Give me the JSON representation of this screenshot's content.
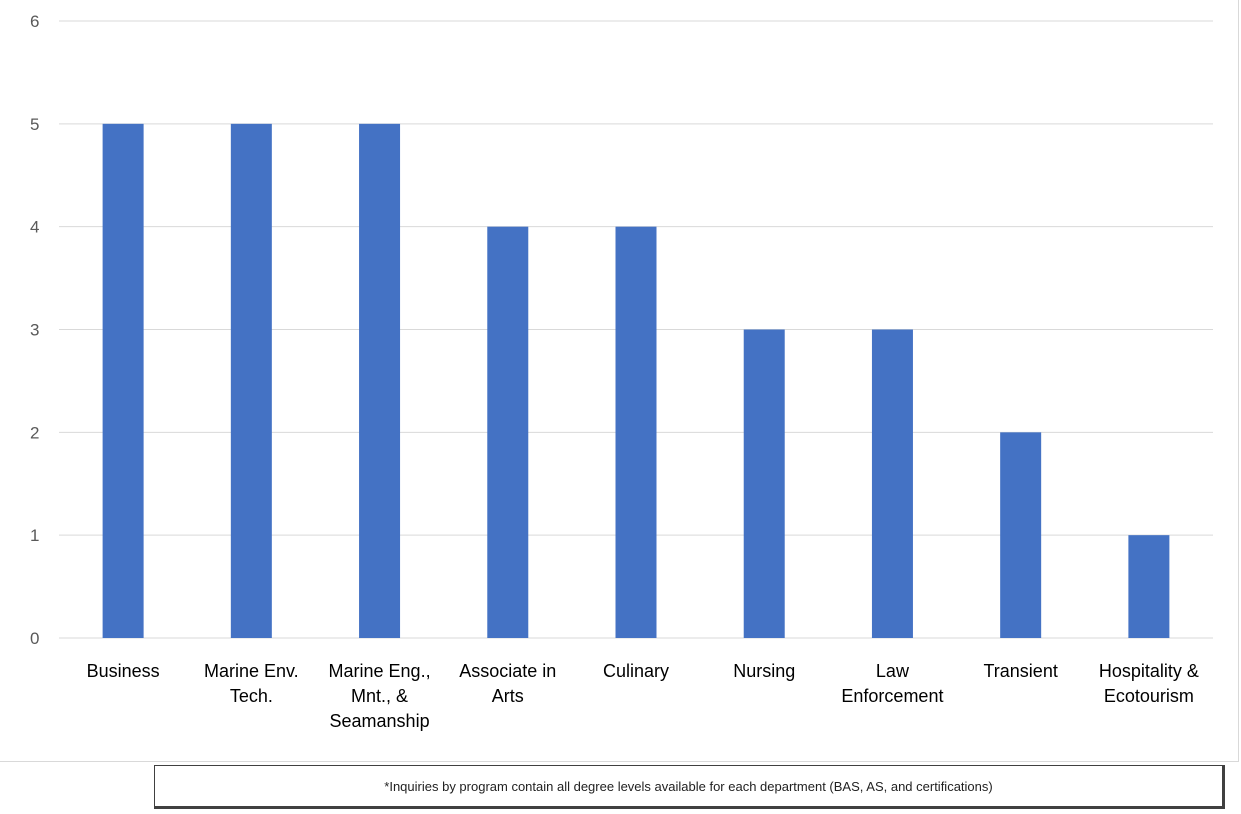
{
  "chart_data": {
    "type": "bar",
    "title": "",
    "xlabel": "",
    "ylabel": "",
    "ylim": [
      0,
      6
    ],
    "yticks": [
      0,
      1,
      2,
      3,
      4,
      5,
      6
    ],
    "grid": true,
    "legend": "none",
    "categories": [
      [
        "Business"
      ],
      [
        "Marine Env.",
        "Tech."
      ],
      [
        "Marine Eng.,",
        "Mnt., &",
        "Seamanship"
      ],
      [
        "Associate in",
        "Arts"
      ],
      [
        "Culinary"
      ],
      [
        "Nursing"
      ],
      [
        "Law",
        "Enforcement"
      ],
      [
        "Transient"
      ],
      [
        "Hospitality &",
        "Ecotourism"
      ]
    ],
    "values": [
      5,
      5,
      5,
      4,
      4,
      3,
      3,
      2,
      1
    ],
    "bar_color": "#4472c4",
    "gridline_color": "#d9d9d9"
  },
  "footnote": "*Inquiries by program contain all degree levels available for each department (BAS, AS, and certifications)"
}
